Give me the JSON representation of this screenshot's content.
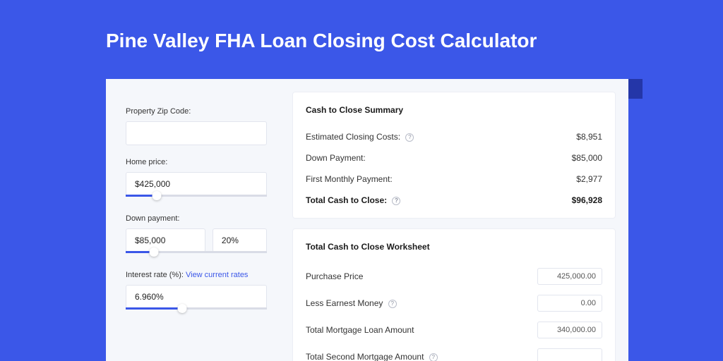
{
  "colors": {
    "page_bg": "#3b57e8",
    "shadow_bar": "#2436a8",
    "panel_bg": "#f5f7fb",
    "card_bg": "#ffffff",
    "border": "#e2e5ee",
    "text": "#333333",
    "accent": "#3b57e8"
  },
  "page": {
    "title": "Pine Valley FHA Loan Closing Cost Calculator"
  },
  "form": {
    "zip": {
      "label": "Property Zip Code:",
      "value": ""
    },
    "home_price": {
      "label": "Home price:",
      "value": "$425,000",
      "slider_pct": 22
    },
    "down_payment": {
      "label": "Down payment:",
      "value": "$85,000",
      "pct": "20%",
      "slider_pct": 20
    },
    "interest": {
      "label": "Interest rate (%): ",
      "link_text": "View current rates",
      "value": "6.960%",
      "slider_pct": 40
    }
  },
  "summary": {
    "title": "Cash to Close Summary",
    "rows": [
      {
        "label": "Estimated Closing Costs:",
        "help": true,
        "value": "$8,951",
        "bold": false
      },
      {
        "label": "Down Payment:",
        "help": false,
        "value": "$85,000",
        "bold": false
      },
      {
        "label": "First Monthly Payment:",
        "help": false,
        "value": "$2,977",
        "bold": false
      },
      {
        "label": "Total Cash to Close:",
        "help": true,
        "value": "$96,928",
        "bold": true
      }
    ]
  },
  "worksheet": {
    "title": "Total Cash to Close Worksheet",
    "rows": [
      {
        "label": "Purchase Price",
        "help": false,
        "value": "425,000.00"
      },
      {
        "label": "Less Earnest Money",
        "help": true,
        "value": "0.00"
      },
      {
        "label": "Total Mortgage Loan Amount",
        "help": false,
        "value": "340,000.00"
      },
      {
        "label": "Total Second Mortgage Amount",
        "help": true,
        "value": ""
      }
    ]
  }
}
